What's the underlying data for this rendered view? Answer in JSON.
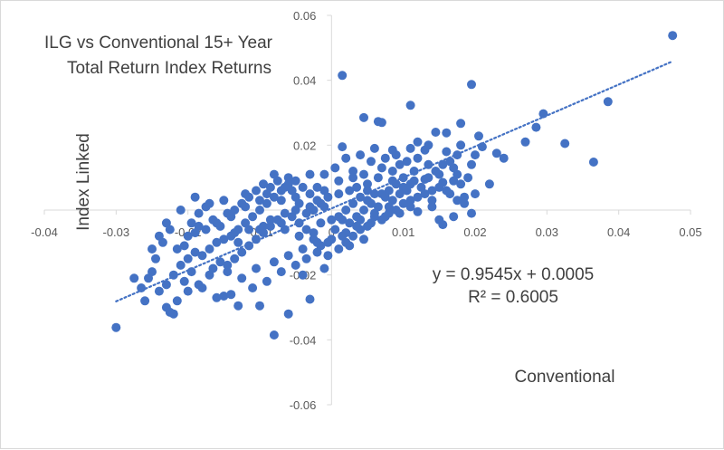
{
  "chart_data": {
    "type": "scatter",
    "title_lines": [
      "ILG vs Conventional 15+ Year",
      "Total Return Index Returns"
    ],
    "xlabel": "Conventional",
    "ylabel": "Index Linked",
    "xlim": [
      -0.04,
      0.05
    ],
    "ylim": [
      -0.06,
      0.06
    ],
    "x_ticks": [
      "-0.04",
      "-0.03",
      "-0.02",
      "-0.01",
      "0",
      "0.01",
      "0.02",
      "0.03",
      "0.04",
      "0.05"
    ],
    "y_ticks": [
      "0.06",
      "0.04",
      "0.02",
      "0",
      "-0.02",
      "-0.04",
      "-0.06"
    ],
    "grid": false,
    "point_color": "#4472C4",
    "trendline": {
      "type": "linear",
      "slope": 0.9545,
      "intercept": 0.0005,
      "x_range": [
        -0.03,
        0.0475
      ],
      "equation": "y = 0.9545x + 0.0005",
      "r_squared": "R² = 0.6005",
      "style": "dotted"
    },
    "points": [
      [
        0.0475,
        0.0538
      ],
      [
        0.0015,
        0.0415
      ],
      [
        0.0195,
        0.0387
      ],
      [
        0.0385,
        0.0334
      ],
      [
        0.0295,
        0.0297
      ],
      [
        0.0285,
        0.0255
      ],
      [
        0.027,
        0.021
      ],
      [
        0.0325,
        0.0205
      ],
      [
        0.0365,
        0.0148
      ],
      [
        0.011,
        0.0323
      ],
      [
        0.0045,
        0.0285
      ],
      [
        0.0065,
        0.0273
      ],
      [
        0.007,
        0.027
      ],
      [
        0.0205,
        0.0228
      ],
      [
        0.018,
        0.0267
      ],
      [
        0.0145,
        0.024
      ],
      [
        0.016,
        0.0238
      ],
      [
        0.012,
        0.021
      ],
      [
        0.02,
        0.017
      ],
      [
        0.021,
        0.0195
      ],
      [
        0.023,
        0.0175
      ],
      [
        0.024,
        0.016
      ],
      [
        0.0195,
        0.014
      ],
      [
        0.017,
        0.013
      ],
      [
        0.015,
        0.011
      ],
      [
        0.013,
        0.0095
      ],
      [
        0.011,
        0.008
      ],
      [
        0.01,
        0.007
      ],
      [
        0.0085,
        0.009
      ],
      [
        0.008,
        0.006
      ],
      [
        0.006,
        0.005
      ],
      [
        0.005,
        0.006
      ],
      [
        0.004,
        0.004
      ],
      [
        0.003,
        0.002
      ],
      [
        0.002,
        0.0
      ],
      [
        0.001,
        -0.002
      ],
      [
        0.0,
        -0.003
      ],
      [
        -0.001,
        0.001
      ],
      [
        -0.002,
        0.003
      ],
      [
        -0.003,
        0.005
      ],
      [
        -0.004,
        0.007
      ],
      [
        -0.005,
        0.009
      ],
      [
        -0.006,
        0.008
      ],
      [
        -0.007,
        0.006
      ],
      [
        -0.008,
        0.004
      ],
      [
        -0.009,
        0.002
      ],
      [
        -0.01,
        0.0
      ],
      [
        -0.011,
        -0.002
      ],
      [
        -0.012,
        -0.004
      ],
      [
        -0.013,
        -0.006
      ],
      [
        -0.014,
        -0.008
      ],
      [
        -0.015,
        -0.009
      ],
      [
        -0.016,
        -0.01
      ],
      [
        -0.017,
        -0.012
      ],
      [
        -0.018,
        -0.014
      ],
      [
        -0.019,
        -0.013
      ],
      [
        -0.02,
        -0.015
      ],
      [
        -0.021,
        -0.017
      ],
      [
        -0.022,
        -0.02
      ],
      [
        -0.023,
        -0.023
      ],
      [
        -0.024,
        -0.025
      ],
      [
        -0.025,
        -0.019
      ],
      [
        -0.026,
        -0.028
      ],
      [
        -0.0225,
        -0.0315
      ],
      [
        -0.022,
        -0.032
      ],
      [
        -0.03,
        -0.0362
      ],
      [
        -0.008,
        -0.0385
      ],
      [
        -0.006,
        -0.032
      ],
      [
        -0.01,
        -0.0295
      ],
      [
        -0.013,
        -0.0295
      ],
      [
        -0.015,
        -0.0265
      ],
      [
        -0.018,
        -0.024
      ],
      [
        -0.003,
        -0.0275
      ],
      [
        -0.001,
        -0.018
      ],
      [
        -0.004,
        -0.02
      ],
      [
        -0.021,
        0.0
      ],
      [
        -0.023,
        -0.004
      ],
      [
        -0.0175,
        0.001
      ],
      [
        -0.0185,
        -0.005
      ],
      [
        -0.016,
        -0.004
      ],
      [
        -0.014,
        -0.002
      ],
      [
        -0.012,
        0.001
      ],
      [
        -0.01,
        0.003
      ],
      [
        -0.009,
        0.005
      ],
      [
        -0.007,
        0.003
      ],
      [
        -0.005,
        0.004
      ],
      [
        -0.003,
        0.001
      ],
      [
        -0.002,
        0.007
      ],
      [
        -0.001,
        0.011
      ],
      [
        0.0005,
        0.013
      ],
      [
        0.0015,
        0.0195
      ],
      [
        0.002,
        0.016
      ],
      [
        0.003,
        0.012
      ],
      [
        0.0045,
        0.011
      ],
      [
        0.0055,
        0.015
      ],
      [
        0.007,
        0.013
      ],
      [
        0.009,
        0.017
      ],
      [
        0.0095,
        0.014
      ],
      [
        0.012,
        0.016
      ],
      [
        0.013,
        0.0185
      ],
      [
        0.014,
        0.006
      ],
      [
        0.0155,
        0.0085
      ],
      [
        0.0165,
        0.005
      ],
      [
        0.0175,
        0.011
      ],
      [
        0.0185,
        0.004
      ],
      [
        0.0185,
        0.002
      ],
      [
        0.015,
        -0.003
      ],
      [
        0.014,
        0.001
      ],
      [
        0.012,
        -0.0005
      ],
      [
        0.011,
        0.003
      ],
      [
        0.009,
        0.0
      ],
      [
        0.008,
        -0.001
      ],
      [
        0.007,
        -0.003
      ],
      [
        0.006,
        -0.002
      ],
      [
        0.005,
        -0.005
      ],
      [
        0.004,
        -0.006
      ],
      [
        0.003,
        -0.008
      ],
      [
        0.002,
        -0.01
      ],
      [
        0.001,
        -0.012
      ],
      [
        -0.0005,
        -0.014
      ],
      [
        -0.0015,
        -0.011
      ],
      [
        -0.0025,
        -0.009
      ],
      [
        -0.0035,
        -0.006
      ],
      [
        -0.0045,
        -0.004
      ],
      [
        -0.0055,
        -0.002
      ],
      [
        -0.0065,
        -0.001
      ],
      [
        -0.0075,
        -0.003
      ],
      [
        -0.0085,
        -0.005
      ],
      [
        -0.0095,
        -0.007
      ],
      [
        -0.0105,
        -0.009
      ],
      [
        -0.0115,
        -0.011
      ],
      [
        -0.0125,
        -0.013
      ],
      [
        -0.0135,
        -0.015
      ],
      [
        -0.0145,
        -0.017
      ],
      [
        -0.0155,
        -0.016
      ],
      [
        -0.0165,
        -0.018
      ],
      [
        -0.0195,
        -0.019
      ],
      [
        -0.0205,
        -0.011
      ],
      [
        -0.0215,
        -0.012
      ],
      [
        -0.0235,
        -0.01
      ],
      [
        -0.0245,
        -0.015
      ],
      [
        -0.02,
        -0.008
      ],
      [
        -0.019,
        -0.007
      ],
      [
        -0.0175,
        -0.006
      ],
      [
        -0.0155,
        -0.005
      ],
      [
        -0.0135,
        -0.007
      ],
      [
        -0.0115,
        -0.006
      ],
      [
        -0.0095,
        -0.005
      ],
      [
        -0.0085,
        -0.003
      ],
      [
        -0.0065,
        -0.006
      ],
      [
        -0.0045,
        -0.008
      ],
      [
        -0.0025,
        -0.007
      ],
      [
        -0.0015,
        -0.004
      ],
      [
        0.0005,
        -0.006
      ],
      [
        0.0015,
        -0.003
      ],
      [
        0.0025,
        -0.004
      ],
      [
        0.0035,
        -0.002
      ],
      [
        0.0045,
        0.0
      ],
      [
        0.0055,
        0.002
      ],
      [
        0.0065,
        0.001
      ],
      [
        0.0075,
        0.004
      ],
      [
        0.0085,
        0.003
      ],
      [
        0.0095,
        0.005
      ],
      [
        0.0105,
        0.006
      ],
      [
        0.0115,
        0.009
      ],
      [
        0.0125,
        0.007
      ],
      [
        0.0135,
        0.01
      ],
      [
        0.0145,
        0.012
      ],
      [
        0.0155,
        0.014
      ],
      [
        0.0165,
        0.015
      ],
      [
        0.0175,
        0.017
      ],
      [
        0.0135,
        0.014
      ],
      [
        0.0115,
        0.012
      ],
      [
        0.01,
        0.01
      ],
      [
        0.0085,
        0.012
      ],
      [
        0.0065,
        0.01
      ],
      [
        0.005,
        0.008
      ],
      [
        0.0035,
        0.007
      ],
      [
        0.0025,
        0.006
      ],
      [
        0.001,
        0.005
      ],
      [
        -0.0005,
        0.004
      ],
      [
        -0.0015,
        0.002
      ],
      [
        -0.0025,
        0.0
      ],
      [
        -0.0035,
        -0.001
      ],
      [
        -0.0045,
        0.002
      ],
      [
        -0.0055,
        0.006
      ],
      [
        -0.0065,
        0.007
      ],
      [
        -0.0075,
        0.009
      ],
      [
        -0.0085,
        0.007
      ],
      [
        -0.0095,
        0.008
      ],
      [
        -0.0105,
        0.006
      ],
      [
        -0.0115,
        0.004
      ],
      [
        -0.0125,
        0.002
      ],
      [
        -0.0135,
        0.0
      ],
      [
        -0.0145,
        -0.001
      ],
      [
        -0.0165,
        -0.003
      ],
      [
        -0.0185,
        -0.001
      ],
      [
        -0.0195,
        -0.004
      ],
      [
        -0.0225,
        -0.006
      ],
      [
        -0.0255,
        -0.021
      ],
      [
        -0.0265,
        -0.024
      ],
      [
        -0.0275,
        -0.021
      ],
      [
        -0.0205,
        -0.022
      ],
      [
        -0.0185,
        -0.023
      ],
      [
        -0.017,
        -0.02
      ],
      [
        -0.0145,
        -0.019
      ],
      [
        -0.0125,
        -0.021
      ],
      [
        -0.0105,
        -0.018
      ],
      [
        -0.008,
        -0.016
      ],
      [
        -0.006,
        -0.014
      ],
      [
        -0.004,
        -0.012
      ],
      [
        -0.002,
        -0.01
      ],
      [
        0.0,
        -0.009
      ],
      [
        0.002,
        -0.007
      ],
      [
        0.004,
        -0.003
      ],
      [
        0.006,
        -0.001
      ],
      [
        0.008,
        0.001
      ],
      [
        0.01,
        0.002
      ],
      [
        0.012,
        0.004
      ],
      [
        0.014,
        0.003
      ],
      [
        0.016,
        0.006
      ],
      [
        0.018,
        0.008
      ],
      [
        0.019,
        0.01
      ],
      [
        0.017,
        0.009
      ],
      [
        0.015,
        0.007
      ],
      [
        0.013,
        0.005
      ],
      [
        0.011,
        0.001
      ],
      [
        0.0095,
        -0.001
      ],
      [
        0.0075,
        -0.002
      ],
      [
        0.0055,
        -0.004
      ],
      [
        0.0035,
        -0.005
      ],
      [
        0.0015,
        -0.008
      ],
      [
        -0.0005,
        -0.01
      ],
      [
        -0.002,
        -0.013
      ],
      [
        -0.0035,
        -0.015
      ],
      [
        -0.005,
        -0.017
      ],
      [
        -0.007,
        -0.019
      ],
      [
        -0.009,
        -0.022
      ],
      [
        -0.011,
        -0.024
      ],
      [
        -0.014,
        -0.026
      ],
      [
        -0.016,
        -0.027
      ],
      [
        -0.02,
        -0.025
      ],
      [
        -0.0215,
        -0.028
      ],
      [
        -0.023,
        -0.03
      ],
      [
        0.0155,
        -0.0045
      ],
      [
        0.017,
        -0.002
      ],
      [
        0.02,
        0.005
      ],
      [
        0.022,
        0.008
      ],
      [
        0.0105,
        0.015
      ],
      [
        0.0075,
        0.016
      ],
      [
        0.004,
        0.017
      ],
      [
        0.006,
        0.019
      ],
      [
        0.0085,
        0.0185
      ],
      [
        0.011,
        0.019
      ],
      [
        0.0135,
        0.02
      ],
      [
        0.016,
        0.018
      ],
      [
        0.018,
        0.02
      ],
      [
        -0.003,
        0.011
      ],
      [
        -0.006,
        0.01
      ],
      [
        -0.008,
        0.011
      ],
      [
        -0.012,
        0.005
      ],
      [
        -0.015,
        0.003
      ],
      [
        -0.017,
        0.002
      ],
      [
        -0.019,
        0.004
      ],
      [
        -0.024,
        -0.008
      ],
      [
        -0.025,
        -0.012
      ],
      [
        0.0195,
        -0.001
      ],
      [
        0.0175,
        0.003
      ],
      [
        0.0045,
        -0.009
      ],
      [
        0.0025,
        -0.011
      ],
      [
        -0.005,
        0.0
      ],
      [
        -0.007,
        -0.004
      ],
      [
        -0.01,
        -0.006
      ],
      [
        -0.013,
        -0.01
      ],
      [
        0.001,
        0.009
      ],
      [
        0.003,
        0.01
      ],
      [
        0.005,
        0.003
      ],
      [
        0.007,
        0.005
      ],
      [
        0.009,
        0.008
      ],
      [
        -0.001,
        0.006
      ]
    ]
  }
}
